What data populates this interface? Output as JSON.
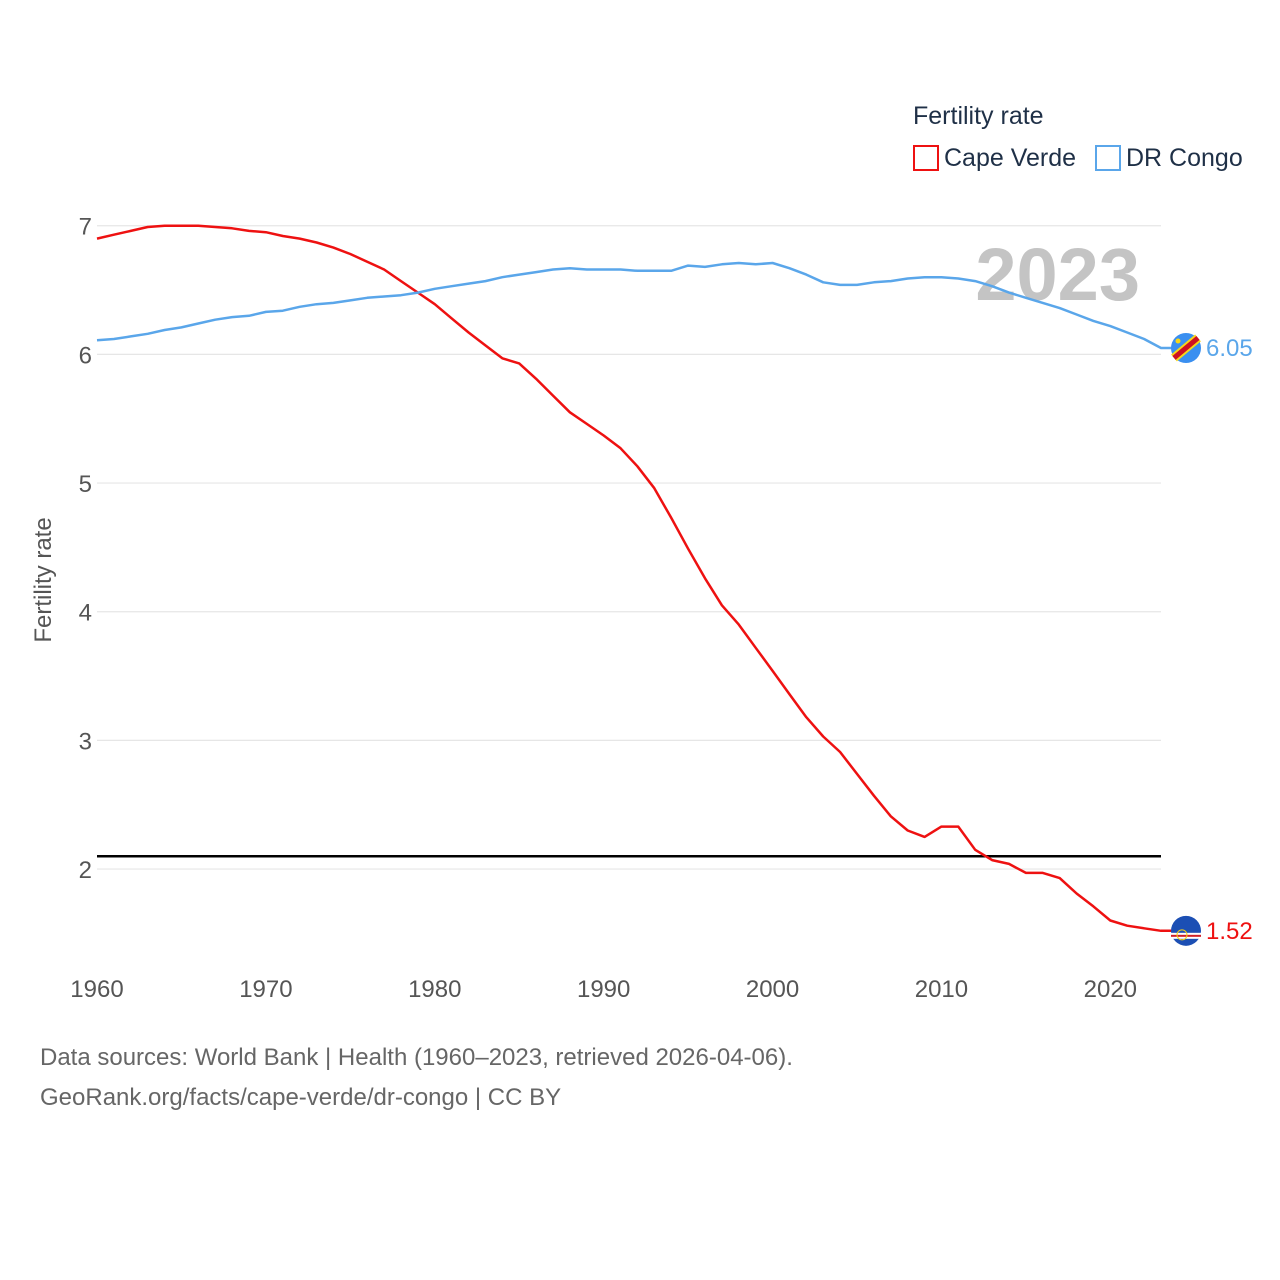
{
  "chart_data": {
    "type": "line",
    "title": "",
    "legend_title": "Fertility rate",
    "xlabel": "",
    "ylabel": "Fertility rate",
    "xlim": [
      1960,
      2023
    ],
    "ylim": [
      1.2,
      7.2
    ],
    "x_ticks": [
      1960,
      1970,
      1980,
      1990,
      2000,
      2010,
      2020
    ],
    "y_ticks": [
      2,
      3,
      4,
      5,
      6,
      7
    ],
    "year_label": "2023",
    "reference_line": 2.1,
    "x": [
      1960,
      1961,
      1962,
      1963,
      1964,
      1965,
      1966,
      1967,
      1968,
      1969,
      1970,
      1971,
      1972,
      1973,
      1974,
      1975,
      1976,
      1977,
      1978,
      1979,
      1980,
      1981,
      1982,
      1983,
      1984,
      1985,
      1986,
      1987,
      1988,
      1989,
      1990,
      1991,
      1992,
      1993,
      1994,
      1995,
      1996,
      1997,
      1998,
      1999,
      2000,
      2001,
      2002,
      2003,
      2004,
      2005,
      2006,
      2007,
      2008,
      2009,
      2010,
      2011,
      2012,
      2013,
      2014,
      2015,
      2016,
      2017,
      2018,
      2019,
      2020,
      2021,
      2022,
      2023
    ],
    "series": [
      {
        "name": "Cape Verde",
        "color": "#ee1111",
        "end_label": "1.52",
        "flag": "cape-verde-flag-icon",
        "values": [
          6.9,
          6.93,
          6.96,
          6.99,
          7.0,
          7.0,
          7.0,
          6.99,
          6.98,
          6.96,
          6.95,
          6.92,
          6.9,
          6.87,
          6.83,
          6.78,
          6.72,
          6.66,
          6.57,
          6.48,
          6.39,
          6.28,
          6.17,
          6.07,
          5.97,
          5.93,
          5.81,
          5.68,
          5.55,
          5.46,
          5.37,
          5.27,
          5.13,
          4.96,
          4.73,
          4.49,
          4.26,
          4.05,
          3.9,
          3.72,
          3.54,
          3.36,
          3.18,
          3.03,
          2.91,
          2.74,
          2.57,
          2.41,
          2.3,
          2.25,
          2.33,
          2.33,
          2.15,
          2.07,
          2.04,
          1.97,
          1.97,
          1.93,
          1.81,
          1.71,
          1.6,
          1.56,
          1.54,
          1.52
        ]
      },
      {
        "name": "DR Congo",
        "color": "#5aa6ea",
        "end_label": "6.05",
        "flag": "dr-congo-flag-icon",
        "values": [
          6.11,
          6.12,
          6.14,
          6.16,
          6.19,
          6.21,
          6.24,
          6.27,
          6.29,
          6.3,
          6.33,
          6.34,
          6.37,
          6.39,
          6.4,
          6.42,
          6.44,
          6.45,
          6.46,
          6.48,
          6.51,
          6.53,
          6.55,
          6.57,
          6.6,
          6.62,
          6.64,
          6.66,
          6.67,
          6.66,
          6.66,
          6.66,
          6.65,
          6.65,
          6.65,
          6.69,
          6.68,
          6.7,
          6.71,
          6.7,
          6.71,
          6.67,
          6.62,
          6.56,
          6.54,
          6.54,
          6.56,
          6.57,
          6.59,
          6.6,
          6.6,
          6.59,
          6.57,
          6.53,
          6.48,
          6.44,
          6.4,
          6.36,
          6.31,
          6.26,
          6.22,
          6.17,
          6.12,
          6.05
        ]
      }
    ]
  },
  "source": {
    "line1": "Data sources: World Bank | Health (1960–2023, retrieved 2026-04-06).",
    "line2": "GeoRank.org/facts/cape-verde/dr-congo | CC BY"
  }
}
